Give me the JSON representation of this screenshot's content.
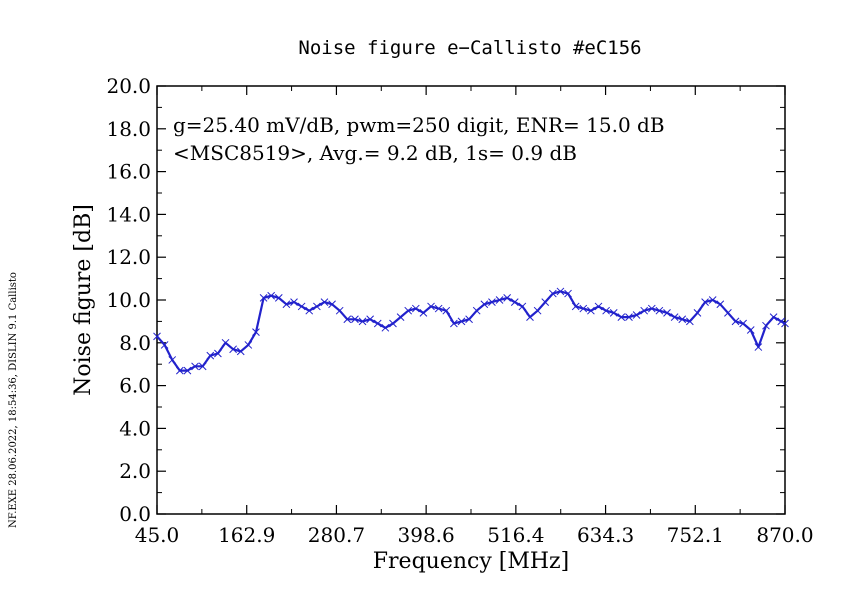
{
  "chart_data": {
    "type": "line",
    "title": "Noise figure e−Callisto #eC156",
    "xlabel": "Frequency [MHz]",
    "ylabel": "Noise figure [dB]",
    "xlim": [
      45.0,
      870.0
    ],
    "ylim": [
      0.0,
      20.0
    ],
    "x_tick_labels": [
      "45.0",
      "162.9",
      "280.7",
      "398.6",
      "516.4",
      "634.3",
      "752.1",
      "870.0"
    ],
    "y_tick_labels": [
      "0.0",
      "2.0",
      "4.0",
      "6.0",
      "8.0",
      "10.0",
      "12.0",
      "14.0",
      "16.0",
      "18.0",
      "20.0"
    ],
    "grid": false,
    "legend": "none",
    "series_color": "#2222cc",
    "annotation_lines": [
      "g=25.40 mV/dB, pwm=250 digit, ENR= 15.0 dB",
      "<MSC8519>, Avg.= 9.2 dB, 1s= 0.9 dB"
    ],
    "footer_text": "NF.EXE 28.06.2022, 18:54:36, DISLIN 9.1 Callisto",
    "series": [
      {
        "x": [
          45,
          55,
          65,
          75,
          85,
          95,
          105,
          115,
          125,
          135,
          145,
          155,
          165,
          175,
          185,
          195,
          205,
          215,
          225,
          235,
          245,
          255,
          265,
          275,
          285,
          295,
          305,
          315,
          325,
          335,
          345,
          355,
          365,
          375,
          385,
          395,
          405,
          415,
          425,
          435,
          445,
          455,
          465,
          475,
          485,
          495,
          505,
          515,
          525,
          535,
          545,
          555,
          565,
          575,
          585,
          595,
          605,
          615,
          625,
          635,
          645,
          655,
          665,
          675,
          685,
          695,
          705,
          715,
          725,
          735,
          745,
          755,
          765,
          775,
          785,
          795,
          805,
          815,
          825,
          835,
          845,
          855,
          865,
          870
        ],
        "y": [
          8.3,
          7.9,
          7.2,
          6.7,
          6.7,
          6.9,
          6.9,
          7.4,
          7.5,
          8.0,
          7.7,
          7.6,
          7.9,
          8.5,
          10.1,
          10.2,
          10.1,
          9.8,
          9.9,
          9.7,
          9.5,
          9.7,
          9.9,
          9.8,
          9.5,
          9.1,
          9.1,
          9.0,
          9.1,
          8.9,
          8.7,
          8.9,
          9.2,
          9.5,
          9.6,
          9.4,
          9.7,
          9.6,
          9.5,
          8.9,
          9.0,
          9.1,
          9.5,
          9.8,
          9.9,
          10.0,
          10.1,
          9.9,
          9.7,
          9.2,
          9.5,
          9.9,
          10.3,
          10.4,
          10.3,
          9.7,
          9.6,
          9.5,
          9.7,
          9.5,
          9.4,
          9.2,
          9.2,
          9.3,
          9.5,
          9.6,
          9.5,
          9.4,
          9.2,
          9.1,
          9.0,
          9.4,
          9.9,
          10.0,
          9.8,
          9.4,
          9.0,
          8.9,
          8.6,
          7.8,
          8.8,
          9.2,
          9.0,
          8.9
        ]
      }
    ]
  }
}
